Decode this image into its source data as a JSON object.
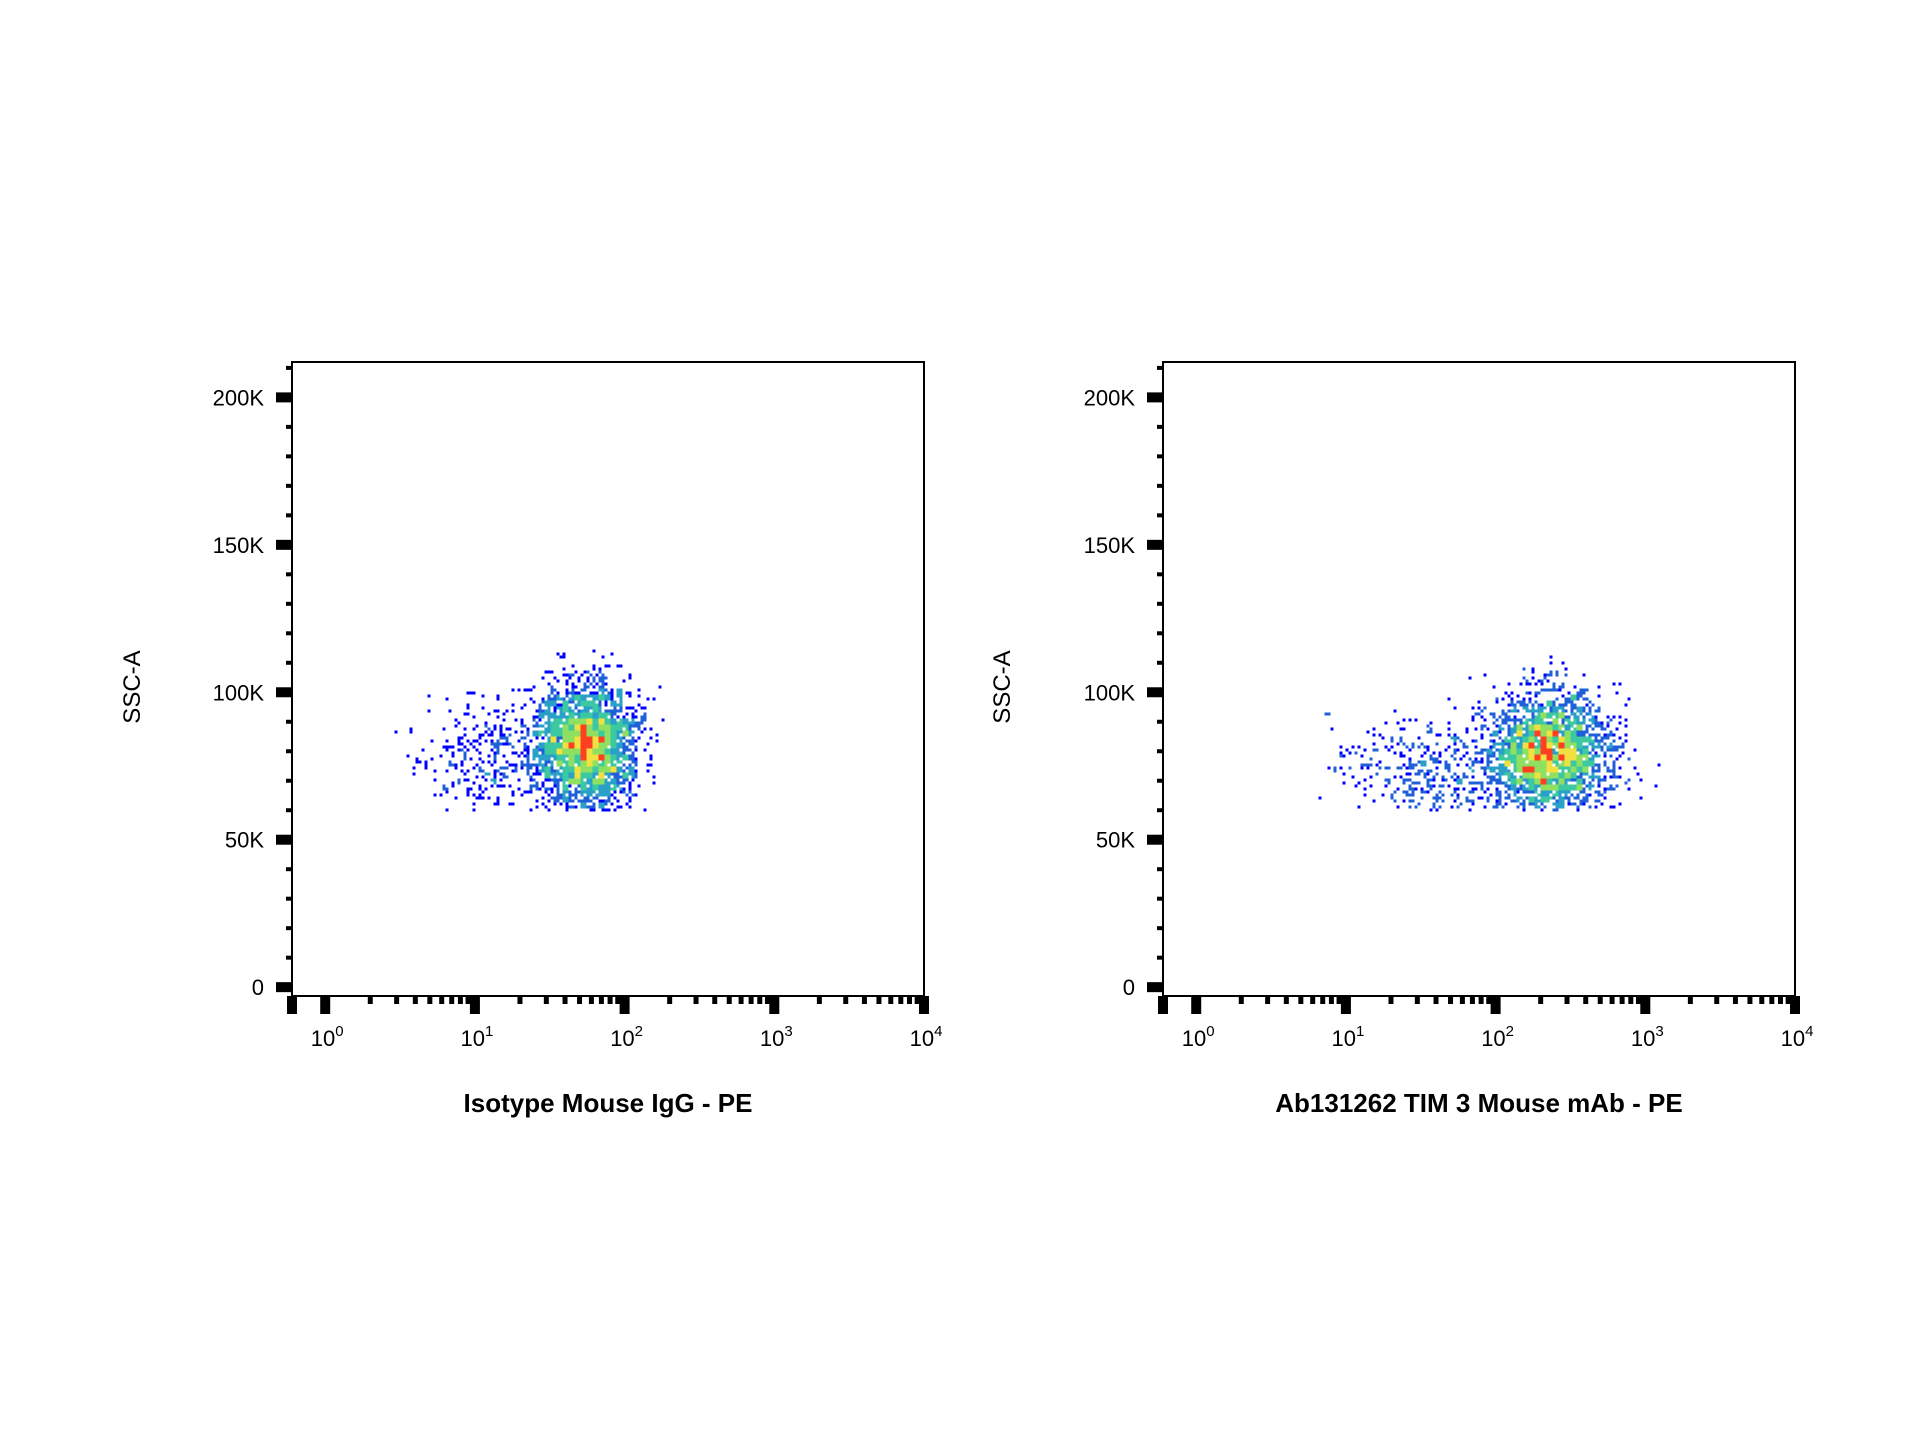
{
  "chart_data": [
    {
      "type": "scatter",
      "subtype": "flow-cytometry-density-dot-plot",
      "title": "",
      "xlabel": "Isotype Mouse IgG - PE",
      "ylabel": "SSC-A",
      "x_scale": "log",
      "xlim": [
        0.6,
        10000
      ],
      "ylim": [
        -3000,
        212000
      ],
      "x_ticks": [
        {
          "value": 1,
          "base": "10",
          "exp": "0"
        },
        {
          "value": 10,
          "base": "10",
          "exp": "1"
        },
        {
          "value": 100,
          "base": "10",
          "exp": "2"
        },
        {
          "value": 1000,
          "base": "10",
          "exp": "3"
        },
        {
          "value": 10000,
          "base": "10",
          "exp": "4"
        }
      ],
      "y_ticks": [
        {
          "value": 0,
          "label": "0"
        },
        {
          "value": 50000,
          "label": "50K"
        },
        {
          "value": 100000,
          "label": "100K"
        },
        {
          "value": 150000,
          "label": "150K"
        },
        {
          "value": 200000,
          "label": "200K"
        }
      ],
      "grid": false,
      "legend": "none",
      "colormap": [
        "#0000ff",
        "#1f5fd8",
        "#2aa0c8",
        "#3cc8a0",
        "#8fe060",
        "#f0e040",
        "#ff4020"
      ],
      "clusters": [
        {
          "x_center": 55,
          "x_log_sd": 0.17,
          "y_center": 82000,
          "y_sd": 11000,
          "y_min": 60000,
          "y_max": 114000,
          "n": 2600
        },
        {
          "x_center": 15,
          "x_log_sd": 0.28,
          "y_center": 78000,
          "y_sd": 10000,
          "y_min": 60000,
          "y_max": 114000,
          "n": 380
        }
      ],
      "x_min": 2.8,
      "x_max": 220,
      "seed": 11
    },
    {
      "type": "scatter",
      "subtype": "flow-cytometry-density-dot-plot",
      "title": "",
      "xlabel": "Ab131262 TIM 3 Mouse mAb - PE",
      "ylabel": "SSC-A",
      "x_scale": "log",
      "xlim": [
        0.6,
        10000
      ],
      "ylim": [
        -3000,
        212000
      ],
      "x_ticks": [
        {
          "value": 1,
          "base": "10",
          "exp": "0"
        },
        {
          "value": 10,
          "base": "10",
          "exp": "1"
        },
        {
          "value": 100,
          "base": "10",
          "exp": "2"
        },
        {
          "value": 1000,
          "base": "10",
          "exp": "3"
        },
        {
          "value": 10000,
          "base": "10",
          "exp": "4"
        }
      ],
      "y_ticks": [
        {
          "value": 0,
          "label": "0"
        },
        {
          "value": 50000,
          "label": "50K"
        },
        {
          "value": 100000,
          "label": "100K"
        },
        {
          "value": 150000,
          "label": "150K"
        },
        {
          "value": 200000,
          "label": "200K"
        }
      ],
      "grid": false,
      "legend": "none",
      "colormap": [
        "#0000ff",
        "#1f5fd8",
        "#2aa0c8",
        "#3cc8a0",
        "#8fe060",
        "#f0e040",
        "#ff4020"
      ],
      "clusters": [
        {
          "x_center": 230,
          "x_log_sd": 0.2,
          "y_center": 79000,
          "y_sd": 10500,
          "y_min": 60000,
          "y_max": 114000,
          "n": 2500
        },
        {
          "x_center": 40,
          "x_log_sd": 0.35,
          "y_center": 74000,
          "y_sd": 9000,
          "y_min": 60000,
          "y_max": 112000,
          "n": 420
        }
      ],
      "x_min": 5,
      "x_max": 1300,
      "seed": 29
    }
  ]
}
